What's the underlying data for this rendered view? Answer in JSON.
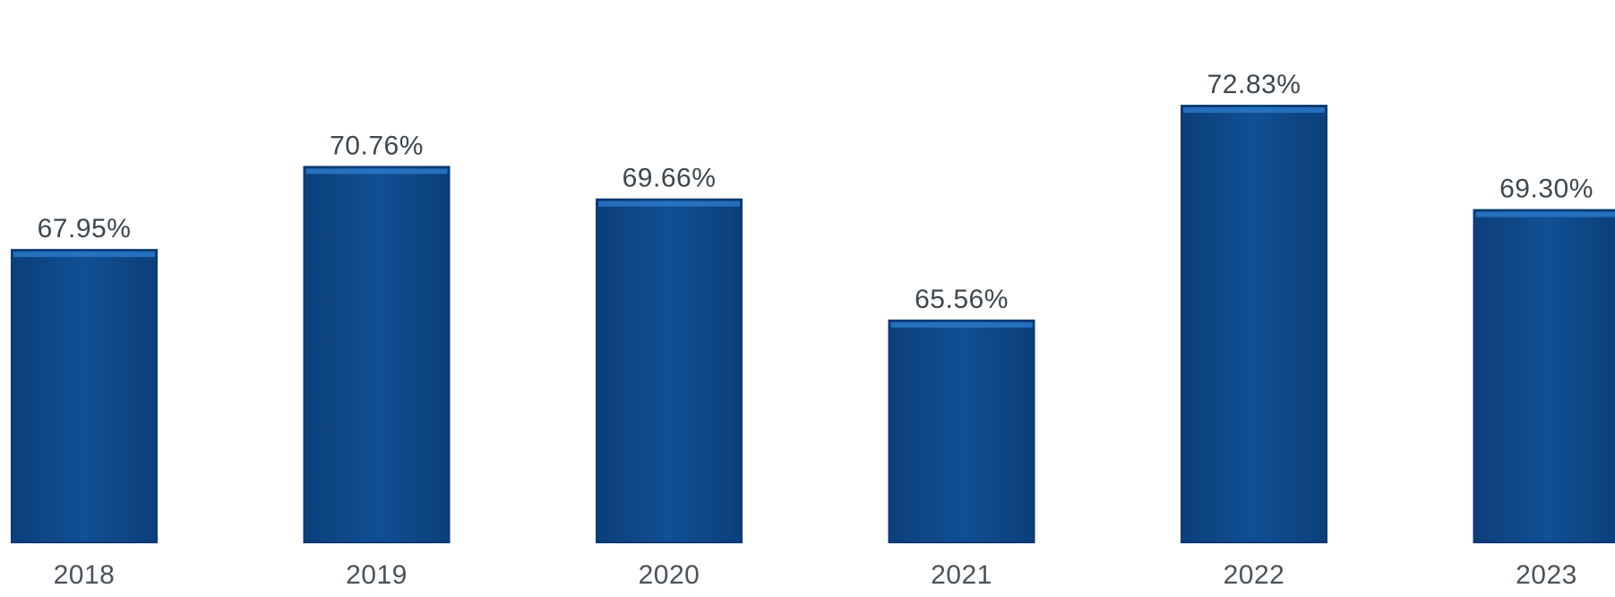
{
  "chart_data": {
    "type": "bar",
    "title": "",
    "xlabel": "",
    "ylabel": "",
    "categories": [
      "2018",
      "2019",
      "2020",
      "2021",
      "2022",
      "2023"
    ],
    "values": [
      67.95,
      70.76,
      69.66,
      65.56,
      72.83,
      69.3
    ],
    "data_labels": [
      "67.95%",
      "70.76%",
      "69.66%",
      "65.56%",
      "72.83%",
      "69.30%"
    ],
    "unit": "%",
    "ylim": [
      58.05,
      74.8
    ],
    "grid": false,
    "legend": "none",
    "colors": {
      "bar": "#0f4b8f",
      "bar_dark": "#0a3a74",
      "bar_top_highlight": "#2a78c8",
      "label_text": "#3d4750",
      "tick_text": "#4a525a"
    }
  }
}
